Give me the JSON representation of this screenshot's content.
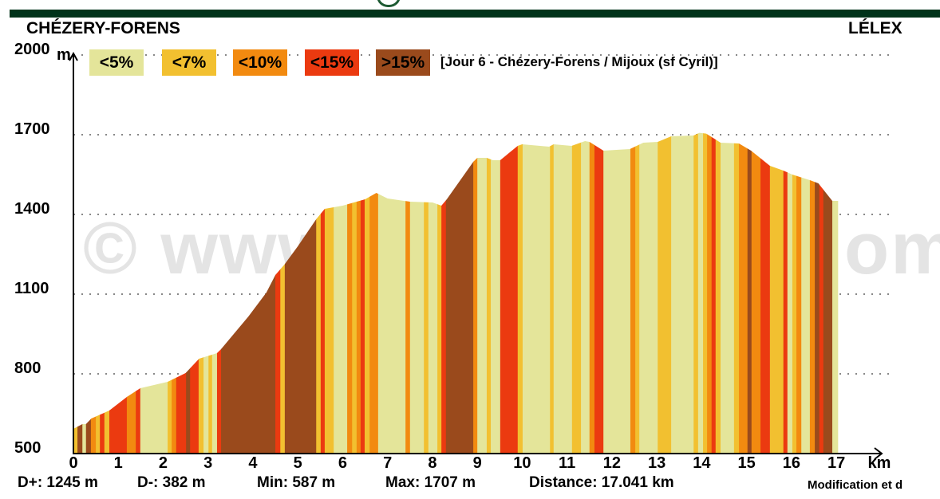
{
  "header": {
    "start": "CHÉZERY-FORENS",
    "end": "LÉLEX",
    "title": "[Jour 6 - Chézery-Forens / Mijoux (sf Cyril)]"
  },
  "watermark": {
    "left": "© www",
    "right": "om"
  },
  "stats": {
    "dplus": "D+: 1245 m",
    "dminus": "D-: 382 m",
    "min": "Min: 587 m",
    "max": "Max: 1707 m",
    "distance": "Distance: 17.041 km",
    "footer": "Modification et d"
  },
  "chart_data": {
    "type": "area",
    "title": "[Jour 6 - Chézery-Forens / Mijoux (sf Cyril)]",
    "xlabel": "km",
    "ylabel": "m",
    "xlim": [
      0,
      17
    ],
    "ylim": [
      500,
      2000
    ],
    "x_ticks": [
      "0",
      "1",
      "2",
      "3",
      "4",
      "5",
      "6",
      "7",
      "8",
      "9",
      "10",
      "11",
      "12",
      "13",
      "14",
      "15",
      "16",
      "17"
    ],
    "y_ticks": [
      "500",
      "800",
      "1100",
      "1400",
      "1700",
      "2000"
    ],
    "grid": true,
    "legend": [
      {
        "label": "<5%",
        "color": "#e4e59a"
      },
      {
        "label": "<7%",
        "color": "#f2c030"
      },
      {
        "label": "<10%",
        "color": "#f28a10"
      },
      {
        "label": "<15%",
        "color": "#eb3a10"
      },
      {
        "label": ">15%",
        "color": "#9a4a1c"
      }
    ],
    "profile": [
      [
        0,
        593
      ],
      [
        0.2,
        611
      ],
      [
        0.28,
        611
      ],
      [
        0.4,
        632
      ],
      [
        0.8,
        662
      ],
      [
        1.19,
        713
      ],
      [
        1.49,
        746
      ],
      [
        2.1,
        770
      ],
      [
        2.5,
        803
      ],
      [
        2.8,
        857
      ],
      [
        3.2,
        878
      ],
      [
        3.29,
        893
      ],
      [
        3.9,
        1016
      ],
      [
        4.3,
        1106
      ],
      [
        4.5,
        1172
      ],
      [
        4.7,
        1211
      ],
      [
        5.0,
        1280
      ],
      [
        5.41,
        1382
      ],
      [
        5.6,
        1421
      ],
      [
        6.0,
        1433
      ],
      [
        6.5,
        1457
      ],
      [
        6.75,
        1481
      ],
      [
        7.0,
        1460
      ],
      [
        7.5,
        1448
      ],
      [
        8.0,
        1445
      ],
      [
        8.2,
        1433
      ],
      [
        8.32,
        1457
      ],
      [
        8.91,
        1598
      ],
      [
        9.0,
        1613
      ],
      [
        9.21,
        1613
      ],
      [
        9.35,
        1604
      ],
      [
        9.51,
        1604
      ],
      [
        9.9,
        1658
      ],
      [
        10.0,
        1664
      ],
      [
        10.6,
        1655
      ],
      [
        10.7,
        1664
      ],
      [
        11.1,
        1658
      ],
      [
        11.4,
        1676
      ],
      [
        11.5,
        1673
      ],
      [
        11.81,
        1640
      ],
      [
        12.4,
        1646
      ],
      [
        12.7,
        1670
      ],
      [
        13.02,
        1673
      ],
      [
        13.32,
        1694
      ],
      [
        13.82,
        1697
      ],
      [
        13.95,
        1707
      ],
      [
        14.1,
        1704
      ],
      [
        14.31,
        1682
      ],
      [
        14.42,
        1670
      ],
      [
        14.83,
        1667
      ],
      [
        15.1,
        1640
      ],
      [
        15.52,
        1583
      ],
      [
        15.82,
        1565
      ],
      [
        16.02,
        1550
      ],
      [
        16.41,
        1529
      ],
      [
        16.6,
        1517
      ],
      [
        16.91,
        1451
      ],
      [
        17.04,
        1451
      ]
    ],
    "slope_segments_end_km_and_class": [
      [
        0.09,
        1
      ],
      [
        0.2,
        4
      ],
      [
        0.28,
        0
      ],
      [
        0.39,
        4
      ],
      [
        0.5,
        2
      ],
      [
        0.59,
        1
      ],
      [
        0.69,
        3
      ],
      [
        0.8,
        1
      ],
      [
        1.19,
        3
      ],
      [
        1.39,
        2
      ],
      [
        1.49,
        3
      ],
      [
        2.1,
        0
      ],
      [
        2.19,
        1
      ],
      [
        2.29,
        2
      ],
      [
        2.51,
        3
      ],
      [
        2.6,
        4
      ],
      [
        2.79,
        3
      ],
      [
        2.9,
        1
      ],
      [
        3.01,
        0
      ],
      [
        3.09,
        1
      ],
      [
        3.2,
        0
      ],
      [
        3.29,
        3
      ],
      [
        4.5,
        4
      ],
      [
        4.61,
        3
      ],
      [
        4.71,
        1
      ],
      [
        5.41,
        4
      ],
      [
        5.51,
        1
      ],
      [
        5.6,
        3
      ],
      [
        5.8,
        1
      ],
      [
        6.1,
        0
      ],
      [
        6.21,
        2
      ],
      [
        6.31,
        1
      ],
      [
        6.4,
        2
      ],
      [
        6.49,
        3
      ],
      [
        6.6,
        1
      ],
      [
        6.79,
        2
      ],
      [
        7.4,
        0
      ],
      [
        7.5,
        2
      ],
      [
        7.81,
        0
      ],
      [
        7.91,
        1
      ],
      [
        8.11,
        0
      ],
      [
        8.2,
        1
      ],
      [
        8.3,
        3
      ],
      [
        8.91,
        4
      ],
      [
        9.0,
        2
      ],
      [
        9.21,
        0
      ],
      [
        9.3,
        1
      ],
      [
        9.51,
        0
      ],
      [
        9.9,
        3
      ],
      [
        10.01,
        1
      ],
      [
        10.62,
        0
      ],
      [
        10.7,
        1
      ],
      [
        11.11,
        0
      ],
      [
        11.31,
        1
      ],
      [
        11.5,
        0
      ],
      [
        11.61,
        2
      ],
      [
        11.81,
        3
      ],
      [
        12.41,
        0
      ],
      [
        12.52,
        2
      ],
      [
        12.61,
        1
      ],
      [
        13.02,
        0
      ],
      [
        13.32,
        1
      ],
      [
        13.82,
        0
      ],
      [
        13.92,
        1
      ],
      [
        14.03,
        0
      ],
      [
        14.12,
        1
      ],
      [
        14.22,
        2
      ],
      [
        14.31,
        3
      ],
      [
        14.42,
        1
      ],
      [
        14.72,
        0
      ],
      [
        14.83,
        1
      ],
      [
        15.02,
        2
      ],
      [
        15.11,
        4
      ],
      [
        15.31,
        2
      ],
      [
        15.52,
        3
      ],
      [
        15.82,
        1
      ],
      [
        15.91,
        3
      ],
      [
        16.02,
        0
      ],
      [
        16.11,
        1
      ],
      [
        16.22,
        2
      ],
      [
        16.41,
        0
      ],
      [
        16.52,
        2
      ],
      [
        16.62,
        4
      ],
      [
        16.71,
        3
      ],
      [
        16.91,
        4
      ],
      [
        17.04,
        0
      ]
    ]
  }
}
